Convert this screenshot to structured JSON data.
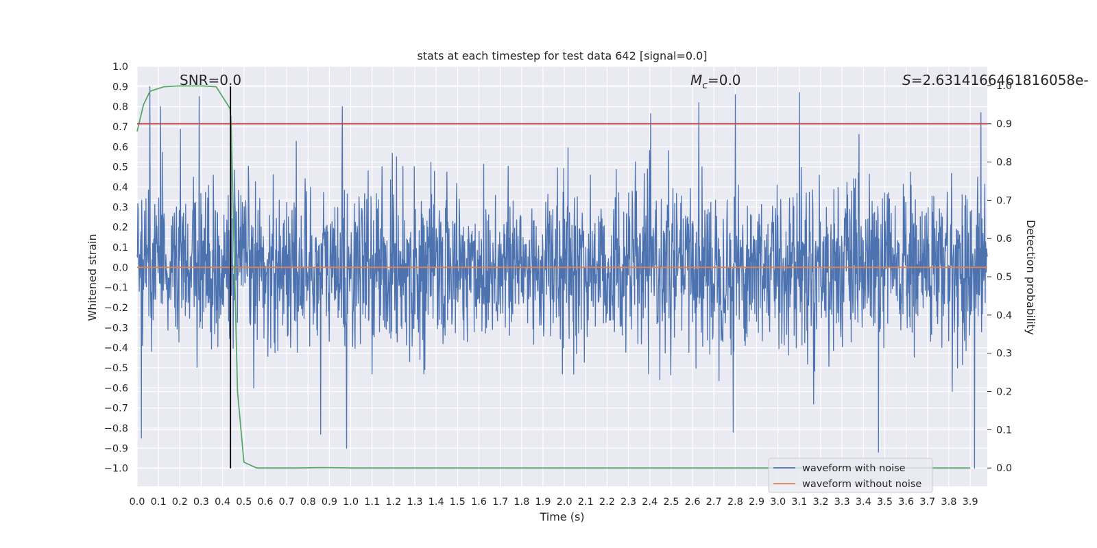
{
  "chart_data": {
    "type": "line",
    "title": "stats at each timestep for test data 642 [signal=0.0]",
    "xlabel": "Time (s)",
    "ylabel": "Whitened strain",
    "y2label": "Detection probability",
    "xlim": [
      0.0,
      3.98
    ],
    "ylim": [
      -1.09,
      1.0
    ],
    "y2lim": [
      -0.048,
      1.05
    ],
    "xticks": [
      "0.0",
      "0.1",
      "0.2",
      "0.3",
      "0.4",
      "0.5",
      "0.6",
      "0.7",
      "0.8",
      "0.9",
      "1.0",
      "1.1",
      "1.2",
      "1.3",
      "1.4",
      "1.5",
      "1.6",
      "1.7",
      "1.8",
      "1.9",
      "2.0",
      "2.1",
      "2.2",
      "2.3",
      "2.4",
      "2.5",
      "2.6",
      "2.7",
      "2.8",
      "2.9",
      "3.0",
      "3.1",
      "3.2",
      "3.3",
      "3.4",
      "3.5",
      "3.6",
      "3.7",
      "3.8",
      "3.9"
    ],
    "yticks": [
      "1.0",
      "0.9",
      "0.8",
      "0.7",
      "0.6",
      "0.5",
      "0.4",
      "0.3",
      "0.2",
      "0.1",
      "0.0",
      "-0.1",
      "-0.2",
      "-0.3",
      "-0.4",
      "-0.5",
      "-0.6",
      "-0.7",
      "-0.8",
      "-0.9",
      "-1.0"
    ],
    "y2ticks": [
      "1.0",
      "0.9",
      "0.8",
      "0.7",
      "0.6",
      "0.5",
      "0.4",
      "0.3",
      "0.2",
      "0.1",
      "0.0"
    ],
    "grid": true,
    "annotations": {
      "snr": "SNR=0.0",
      "mc_symbol": "M",
      "mc_sub": "c",
      "mc_value": "=0.0",
      "s_symbol": "S",
      "s_value": "=2.6314166461816058e-"
    },
    "series": [
      {
        "name": "waveform with noise",
        "color": "#4c72b0",
        "axis": "left",
        "description": "dense noise trace sampled across 0.0-3.98 s, mostly within ±0.5 with spikes to about ±0.9",
        "notable_peaks": [
          [
            0.02,
            -0.85
          ],
          [
            0.06,
            0.9
          ],
          [
            0.11,
            0.8
          ],
          [
            0.29,
            0.85
          ],
          [
            0.44,
            0.75
          ],
          [
            0.86,
            -0.83
          ],
          [
            0.96,
            0.8
          ],
          [
            0.98,
            -0.9
          ],
          [
            2.63,
            0.82
          ],
          [
            2.8,
            0.86
          ],
          [
            2.79,
            -0.82
          ],
          [
            3.1,
            0.87
          ],
          [
            3.47,
            -0.92
          ],
          [
            3.92,
            -1.0
          ],
          [
            3.95,
            0.77
          ]
        ]
      },
      {
        "name": "waveform without noise",
        "color": "#dd8452",
        "axis": "left",
        "x": [
          0.0,
          3.98
        ],
        "values": [
          0.0,
          0.0
        ]
      },
      {
        "name": "detection probability",
        "color": "#55a868",
        "axis": "right",
        "x": [
          0.0,
          0.03,
          0.06,
          0.125,
          0.19,
          0.25,
          0.31,
          0.37,
          0.435,
          0.44,
          0.47,
          0.5,
          0.56,
          0.62,
          0.75,
          0.87,
          1.0,
          2.0,
          3.0,
          3.9
        ],
        "values": [
          0.88,
          0.95,
          0.985,
          0.997,
          0.999,
          0.999,
          0.999,
          0.997,
          0.94,
          0.9,
          0.2,
          0.015,
          0.0,
          0.0,
          0.0,
          0.001,
          0.0,
          0.0,
          0.0,
          0.0
        ]
      },
      {
        "name": "threshold",
        "color": "#c44e52",
        "axis": "right",
        "x": [
          0.0,
          3.98
        ],
        "values": [
          0.9,
          0.9
        ]
      },
      {
        "name": "marker",
        "color": "#000000",
        "axis": "left",
        "x": [
          0.437,
          0.437
        ],
        "values": [
          -1.0,
          0.9
        ]
      }
    ],
    "legend": {
      "position": "lower-right",
      "entries": [
        {
          "label": "waveform with noise",
          "color": "#4c72b0"
        },
        {
          "label": "waveform without noise",
          "color": "#dd8452"
        }
      ]
    },
    "colors": {
      "plot_background": "#eaeaf2",
      "grid": "#ffffff",
      "text": "#262626"
    }
  }
}
